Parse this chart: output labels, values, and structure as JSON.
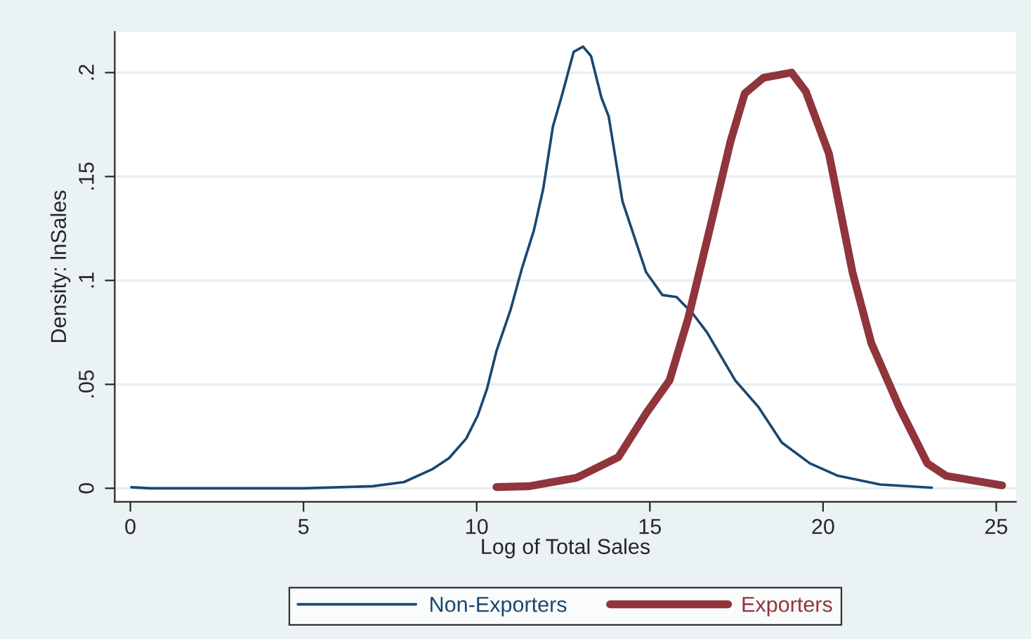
{
  "chart_data": {
    "type": "line",
    "xlabel": "Log of Total Sales",
    "ylabel": "Density: lnSales",
    "xlim": [
      -0.45,
      25.57
    ],
    "ylim": [
      -0.0065,
      0.2196
    ],
    "xticks": [
      0,
      5,
      10,
      15,
      20,
      25
    ],
    "yticks": [
      {
        "value": 0,
        "label": "0"
      },
      {
        "value": 0.05,
        "label": ".05"
      },
      {
        "value": 0.1,
        "label": ".1"
      },
      {
        "value": 0.15,
        "label": ".15"
      },
      {
        "value": 0.2,
        "label": ".2"
      }
    ],
    "grid": "y",
    "legend": "bottom",
    "line_style": "solid",
    "marker": "none",
    "series": [
      {
        "name": "Non-Exporters",
        "color": "#1a476f",
        "x": [
          0.03,
          0.57,
          5,
          7,
          7.9,
          8.7,
          9.2,
          9.7,
          10.03,
          10.3,
          10.57,
          10.98,
          11.31,
          11.65,
          11.92,
          12.2,
          12.46,
          12.8,
          13.07,
          13.3,
          13.6,
          13.81,
          14.21,
          14.89,
          15.36,
          15.77,
          16.24,
          16.65,
          17.46,
          18.14,
          18.81,
          19.62,
          20.43,
          21.65,
          23.14
        ],
        "values": [
          0.0005,
          0,
          0,
          0.001,
          0.003,
          0.009,
          0.0145,
          0.024,
          0.035,
          0.048,
          0.066,
          0.086,
          0.106,
          0.124,
          0.144,
          0.174,
          0.189,
          0.21,
          0.2125,
          0.208,
          0.188,
          0.179,
          0.138,
          0.104,
          0.093,
          0.092,
          0.084,
          0.075,
          0.052,
          0.039,
          0.022,
          0.012,
          0.006,
          0.0018,
          0.0003
        ]
      },
      {
        "name": "Exporters",
        "color": "#90353b",
        "x": [
          10.57,
          11.52,
          12.87,
          13.0,
          14.09,
          14.89,
          15.57,
          16.11,
          16.79,
          17.33,
          17.74,
          18.28,
          19.09,
          19.5,
          20.17,
          20.85,
          21.39,
          22.2,
          23.01,
          23.55,
          25.17
        ],
        "values": [
          0.0006,
          0.001,
          0.005,
          0.006,
          0.015,
          0.036,
          0.052,
          0.082,
          0.129,
          0.167,
          0.19,
          0.1975,
          0.2,
          0.191,
          0.161,
          0.104,
          0.07,
          0.039,
          0.012,
          0.006,
          0.0014
        ]
      }
    ]
  }
}
